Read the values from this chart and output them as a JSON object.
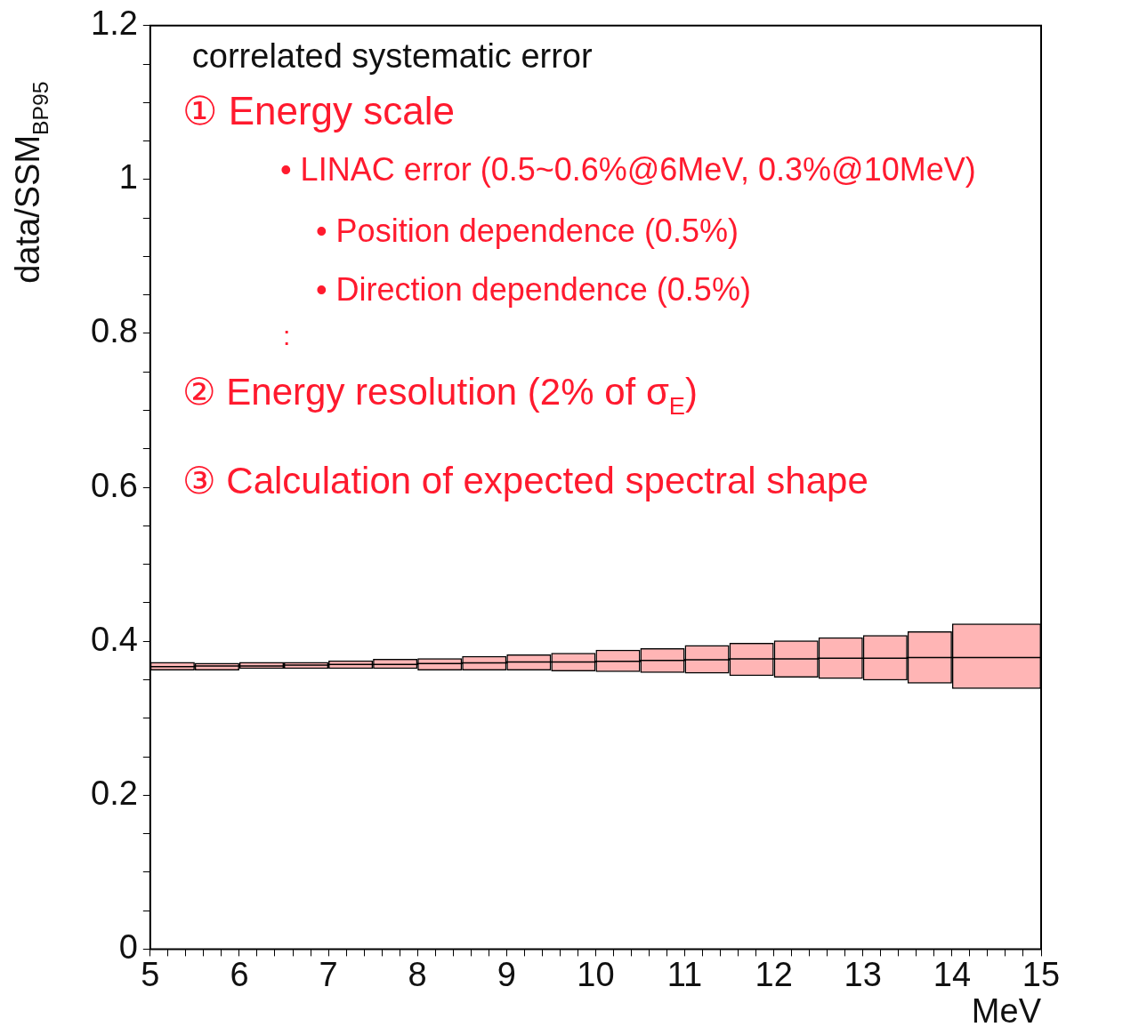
{
  "chart_data": {
    "type": "bar",
    "title": "correlated systematic error",
    "xlabel": "MeV",
    "ylabel": "data/SSM$_{BP95}$",
    "annotations": [
      "① Energy scale",
      "• LINAC error (0.5~0.6%@6MeV, 0.3%@10MeV)",
      "• Position dependence (0.5%)",
      "• Direction dependence (0.5%)",
      ":",
      "② Energy resolution (2% of σ$_{E}$)",
      "③ Calculation of expected spectral shape"
    ],
    "xlim": [
      5,
      15
    ],
    "xticks": [
      5,
      {
        "value": 5.2,
        "label": null
      },
      {
        "value": 5.4,
        "label": null
      },
      {
        "value": 5.6,
        "label": null
      },
      {
        "value": 5.8,
        "label": null
      },
      6,
      {
        "value": 6.2,
        "label": null
      },
      {
        "value": 6.4,
        "label": null
      },
      {
        "value": 6.6,
        "label": null
      },
      {
        "value": 6.8,
        "label": null
      },
      7,
      {
        "value": 7.2,
        "label": null
      },
      {
        "value": 7.4,
        "label": null
      },
      {
        "value": 7.6,
        "label": null
      },
      {
        "value": 7.8,
        "label": null
      },
      8,
      {
        "value": 8.2,
        "label": null
      },
      {
        "value": 8.4,
        "label": null
      },
      {
        "value": 8.6,
        "label": null
      },
      {
        "value": 8.8,
        "label": null
      },
      9,
      {
        "value": 9.2,
        "label": null
      },
      {
        "value": 9.4,
        "label": null
      },
      {
        "value": 9.6,
        "label": null
      },
      {
        "value": 9.8,
        "label": null
      },
      10,
      {
        "value": 10.2,
        "label": null
      },
      {
        "value": 10.4,
        "label": null
      },
      {
        "value": 10.6,
        "label": null
      },
      {
        "value": 10.8,
        "label": null
      },
      11,
      {
        "value": 11.2,
        "label": null
      },
      {
        "value": 11.4,
        "label": null
      },
      {
        "value": 11.6,
        "label": null
      },
      {
        "value": 11.8,
        "label": null
      },
      12,
      {
        "value": 12.2,
        "label": null
      },
      {
        "value": 12.4,
        "label": null
      },
      {
        "value": 12.6,
        "label": null
      },
      {
        "value": 12.8,
        "label": null
      },
      13,
      {
        "value": 13.2,
        "label": null
      },
      {
        "value": 13.4,
        "label": null
      },
      {
        "value": 13.6,
        "label": null
      },
      {
        "value": 13.8,
        "label": null
      },
      14,
      {
        "value": 14.2,
        "label": null
      },
      {
        "value": 14.4,
        "label": null
      },
      {
        "value": 14.6,
        "label": null
      },
      {
        "value": 14.8,
        "label": null
      },
      15
    ],
    "ylim": [
      0,
      1.2
    ],
    "yticks": [
      0,
      {
        "value": 0.05,
        "label": null
      },
      {
        "value": 0.1,
        "label": null
      },
      {
        "value": 0.15,
        "label": null
      },
      0.2,
      {
        "value": 0.25,
        "label": null
      },
      {
        "value": 0.3,
        "label": null
      },
      {
        "value": 0.35,
        "label": null
      },
      0.4,
      {
        "value": 0.45,
        "label": null
      },
      {
        "value": 0.5,
        "label": null
      },
      {
        "value": 0.55,
        "label": null
      },
      0.6,
      {
        "value": 0.65,
        "label": null
      },
      {
        "value": 0.7,
        "label": null
      },
      {
        "value": 0.75,
        "label": null
      },
      0.8,
      {
        "value": 0.85,
        "label": null
      },
      {
        "value": 0.9,
        "label": null
      },
      {
        "value": 0.95,
        "label": null
      },
      1,
      {
        "value": 1.05,
        "label": null
      },
      {
        "value": 1.1,
        "label": null
      },
      {
        "value": 1.15,
        "label": null
      },
      1.2
    ],
    "legend": false,
    "series": [
      {
        "color": "#ff2a2a",
        "x": [
          5.25,
          5.75,
          6.25,
          6.75,
          7.25,
          7.75,
          8.25,
          8.75,
          9.25,
          9.75,
          10.25,
          10.75,
          11.25,
          11.75,
          12.25,
          12.75,
          13.25,
          13.75,
          14.5
        ],
        "base": [
          0.362,
          0.362,
          0.364,
          0.364,
          0.364,
          0.364,
          0.362,
          0.362,
          0.362,
          0.361,
          0.36,
          0.359,
          0.358,
          0.355,
          0.353,
          0.351,
          0.349,
          0.345,
          0.338
        ],
        "values": [
          0.011,
          0.01,
          0.009,
          0.009,
          0.011,
          0.013,
          0.016,
          0.019,
          0.021,
          0.024,
          0.029,
          0.032,
          0.037,
          0.043,
          0.048,
          0.054,
          0.059,
          0.068,
          0.085
        ]
      },
      {
        "type": "step",
        "color": "#000000",
        "x": [
          5,
          5.5,
          6,
          6.5,
          7,
          7.5,
          8,
          8.5,
          9,
          9.5,
          10,
          10.5,
          11,
          11.5,
          12,
          12.5,
          13,
          13.5,
          14,
          15
        ],
        "values": [
          0.367,
          0.367,
          0.368,
          0.368,
          0.369,
          0.37,
          0.37,
          0.371,
          0.372,
          0.373,
          0.373,
          0.374,
          0.375,
          0.376,
          0.377,
          0.377,
          0.378,
          0.378,
          0.379,
          0.379
        ]
      }
    ]
  }
}
